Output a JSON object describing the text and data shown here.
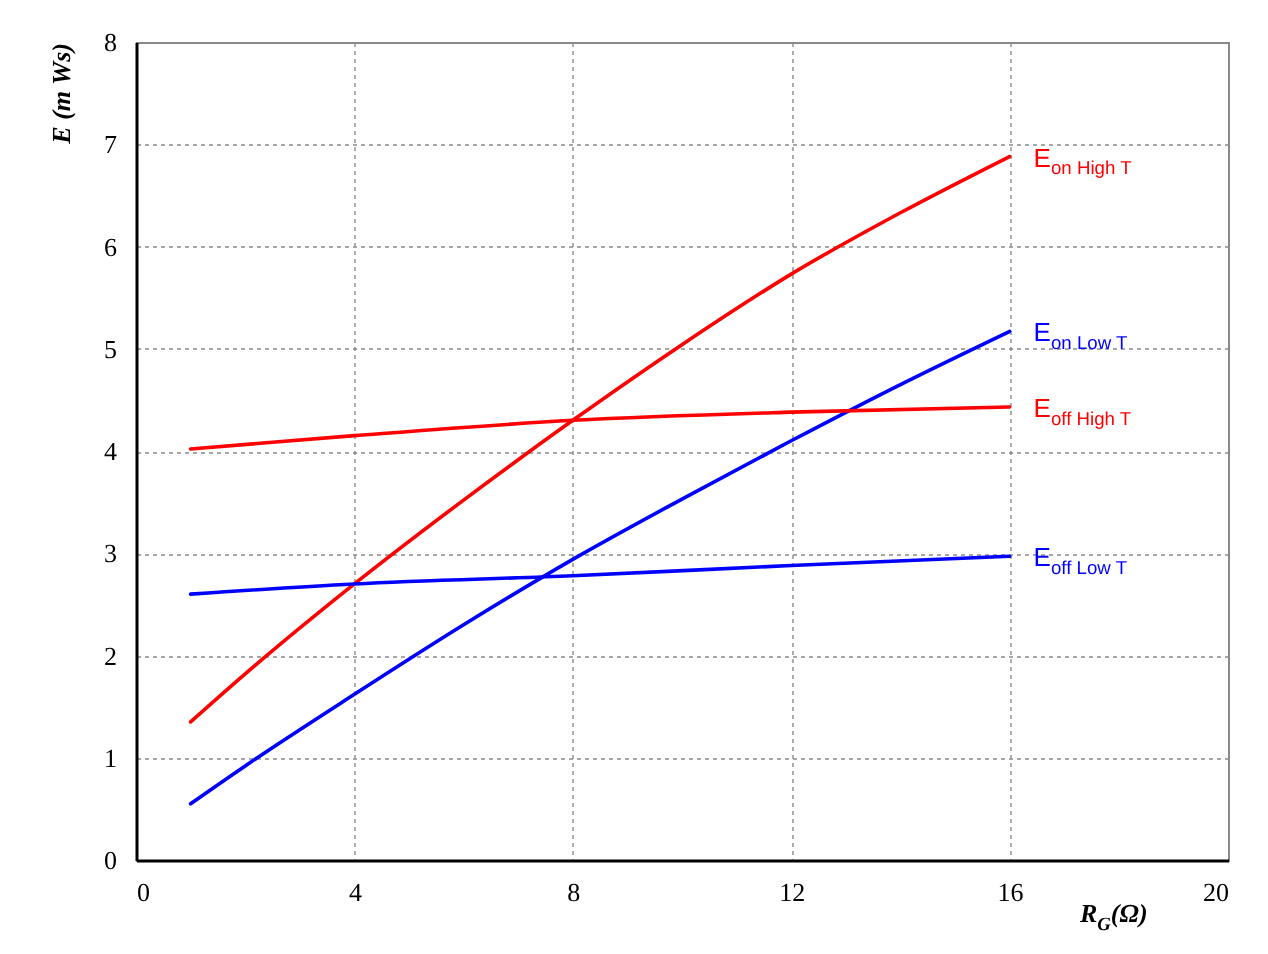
{
  "chart_data": {
    "type": "line",
    "xlabel": "R$_{G}$(Ω)",
    "ylabel": "E (m Ws)",
    "xlim": [
      0,
      20
    ],
    "xticks": [
      0,
      4,
      8,
      12,
      16,
      20
    ],
    "ylim": [
      0,
      8
    ],
    "yticks": [
      0,
      1,
      2,
      3,
      4,
      5,
      6,
      7,
      8
    ],
    "grid": true,
    "series": [
      {
        "name": "E$_{on High T}$",
        "color": "#ff0000",
        "x": [
          1,
          2,
          4,
          6,
          8,
          10,
          12,
          14,
          16
        ],
        "values": [
          1.35,
          1.82,
          2.7,
          3.52,
          4.3,
          5.04,
          5.73,
          6.33,
          6.88
        ]
      },
      {
        "name": "E$_{on Low T}$",
        "color": "#0000ff",
        "x": [
          1,
          2,
          4,
          6,
          8,
          10,
          12,
          14,
          16
        ],
        "values": [
          0.55,
          0.92,
          1.62,
          2.3,
          2.94,
          3.53,
          4.1,
          4.65,
          5.17
        ]
      },
      {
        "name": "E$_{off High T}$",
        "color": "#ff0000",
        "x": [
          1,
          4,
          8,
          12,
          16
        ],
        "values": [
          4.02,
          4.15,
          4.3,
          4.38,
          4.43
        ]
      },
      {
        "name": "E$_{off Low T}$",
        "color": "#0000ff",
        "x": [
          1,
          4,
          8,
          12,
          16
        ],
        "values": [
          2.6,
          2.7,
          2.78,
          2.88,
          2.97
        ]
      }
    ]
  }
}
